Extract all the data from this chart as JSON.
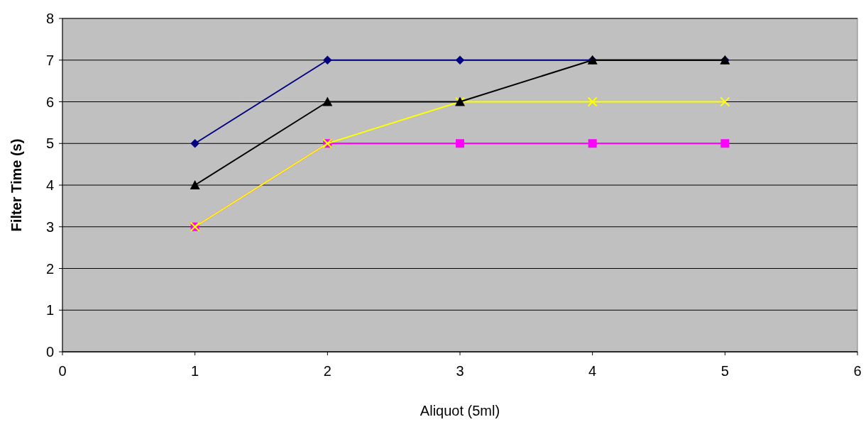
{
  "chart_data": {
    "type": "line",
    "xlabel": "Aliquot (5ml)",
    "ylabel": "Filter Time (s)",
    "x": [
      1,
      2,
      3,
      4,
      5
    ],
    "xlim": [
      0,
      6
    ],
    "xticks": [
      0,
      1,
      2,
      3,
      4,
      5,
      6
    ],
    "ylim": [
      0,
      8
    ],
    "yticks": [
      0,
      1,
      2,
      3,
      4,
      5,
      6,
      7,
      8
    ],
    "grid": "y",
    "line_style": "solid",
    "series": [
      {
        "color": "#000080",
        "marker": "diamond",
        "values": [
          5,
          7,
          7,
          7,
          7
        ]
      },
      {
        "color": "#ff00ff",
        "marker": "square",
        "values": [
          3,
          5,
          5,
          5,
          5
        ]
      },
      {
        "color": "#ffff00",
        "marker": "cross",
        "values": [
          3,
          5,
          6,
          6,
          6
        ]
      },
      {
        "color": "#000000",
        "marker": "triangle",
        "values": [
          4,
          6,
          6,
          7,
          7
        ]
      }
    ]
  }
}
